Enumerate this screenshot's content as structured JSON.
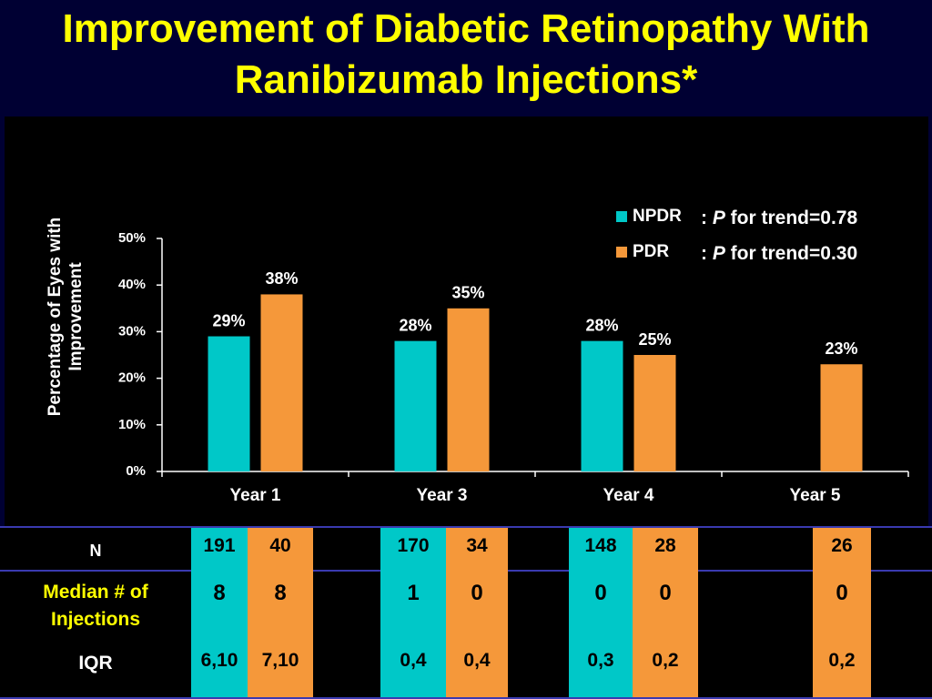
{
  "chart_data": {
    "type": "bar",
    "title": "Improvement of Diabetic Retinopathy With Ranibizumab Injections*",
    "y_label": "Percentage of Eyes with Improvement",
    "categories": [
      "Year 1",
      "Year 3",
      "Year 4",
      "Year 5"
    ],
    "series": [
      {
        "name": "NPDR",
        "color": "#00c8c8",
        "values": [
          29,
          28,
          28,
          null
        ],
        "value_labels": [
          "29%",
          "28%",
          "28%",
          null
        ],
        "trend": [
          ": ",
          "P",
          " for trend=0.78"
        ]
      },
      {
        "name": "PDR",
        "color": "#f5983a",
        "values": [
          38,
          35,
          25,
          23
        ],
        "value_labels": [
          "38%",
          "35%",
          "25%",
          "23%"
        ],
        "trend": [
          ": ",
          "P",
          " for trend=0.30"
        ]
      }
    ],
    "ylim": [
      0,
      50
    ],
    "yticks": [
      {
        "value": 0,
        "label": "0%"
      },
      {
        "value": 10,
        "label": "10%"
      },
      {
        "value": 20,
        "label": "20%"
      },
      {
        "value": 30,
        "label": "30%"
      },
      {
        "value": 40,
        "label": "40%"
      },
      {
        "value": 50,
        "label": "50%"
      }
    ],
    "legend": "top-right"
  },
  "table": {
    "rows": [
      {
        "label": "N",
        "cells": [
          191,
          40,
          170,
          34,
          148,
          28,
          null,
          26
        ]
      },
      {
        "label": "Median # of Injections",
        "cells": [
          8,
          8,
          1,
          0,
          0,
          0,
          null,
          0
        ]
      },
      {
        "label": "IQR",
        "cells": [
          "6,10",
          "7,10",
          "0,4",
          "0,4",
          "0,3",
          "0,2",
          null,
          "0,2"
        ]
      }
    ]
  }
}
